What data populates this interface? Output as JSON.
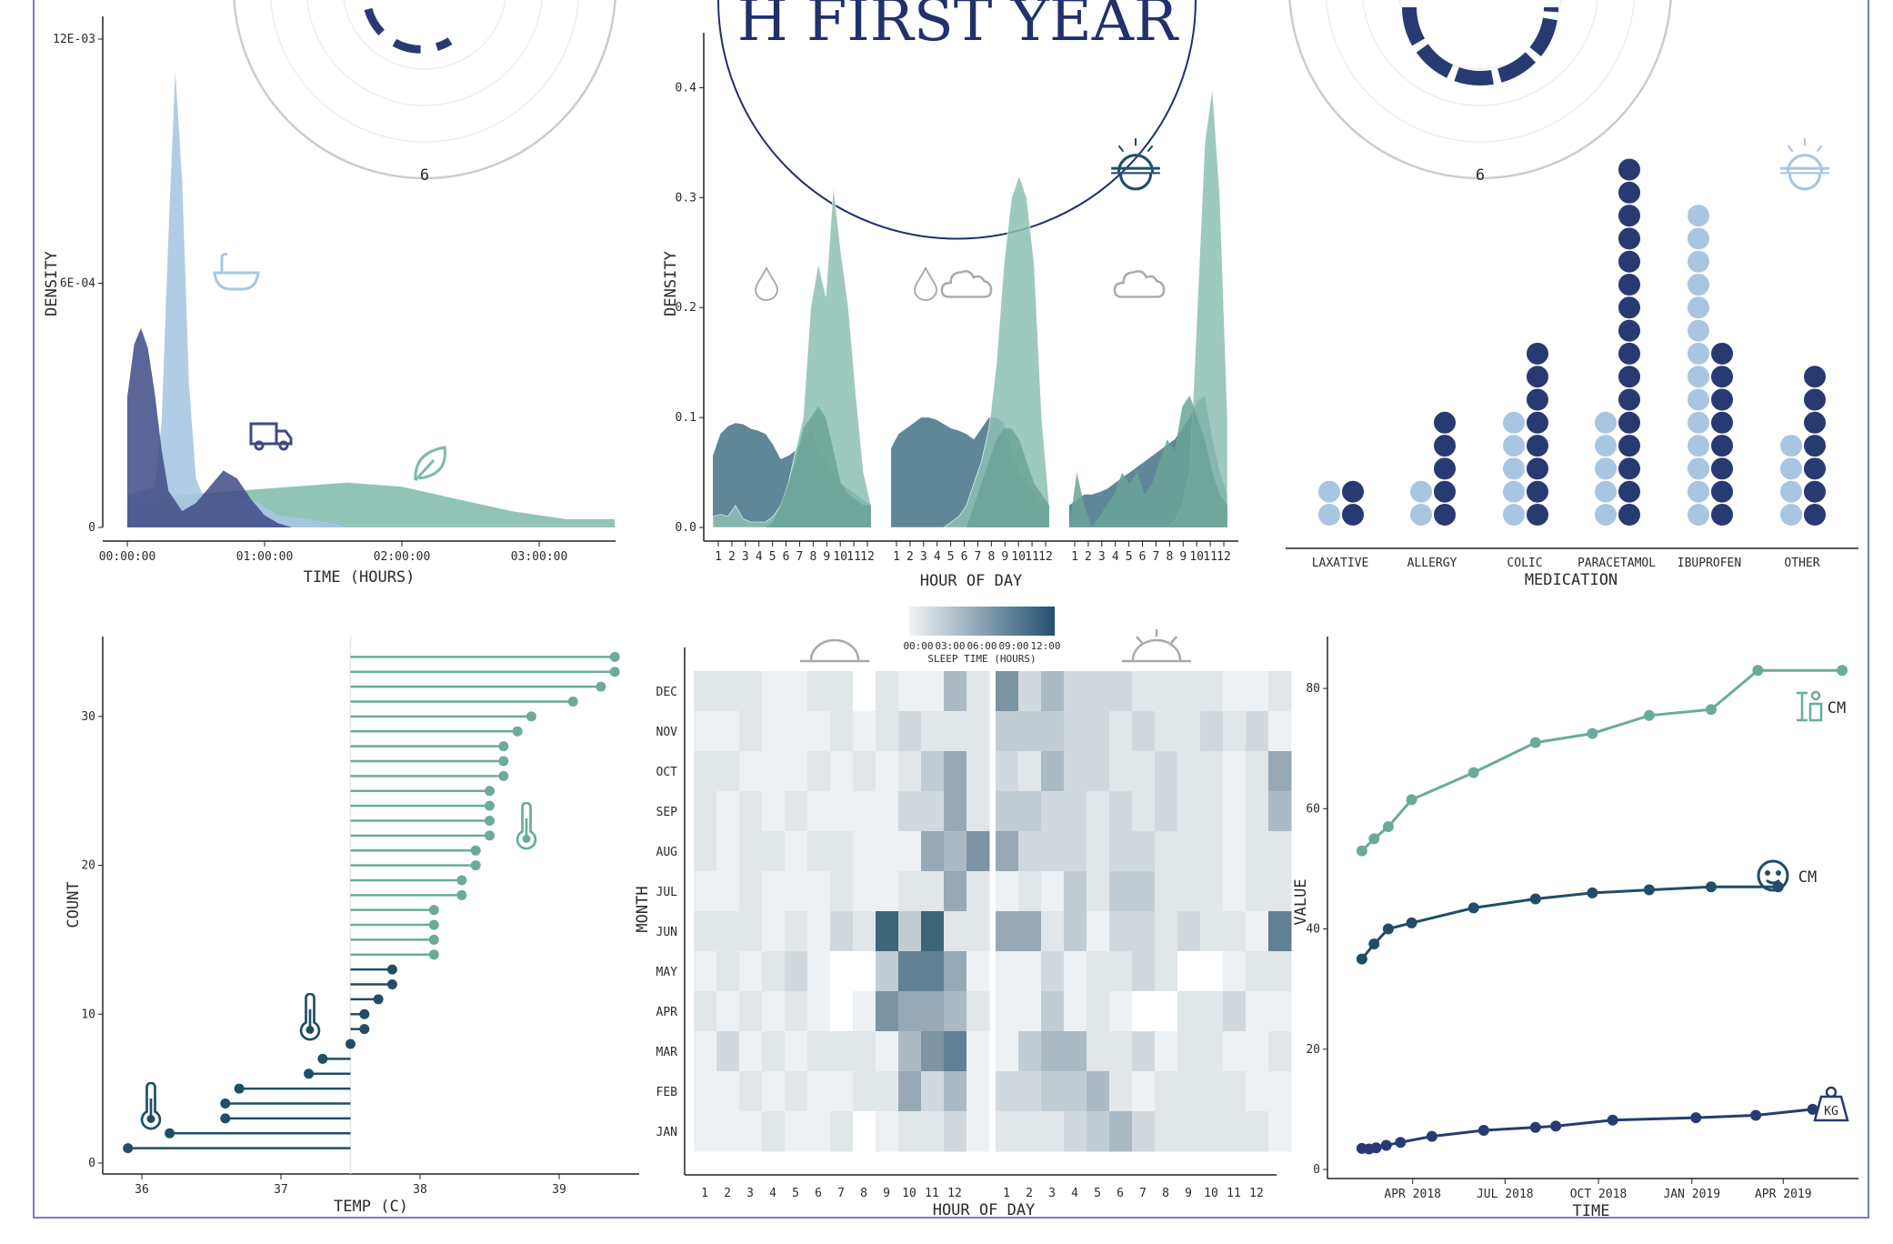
{
  "header": {
    "title_fragment": "H FIRST YEAR"
  },
  "colors": {
    "navy": "#283a72",
    "lightblue": "#a8c6e2",
    "teal": "#7fb8aa",
    "slate": "#4f7a8d",
    "darkteal": "#1f5068"
  },
  "icons": [
    "bathtub-icon",
    "truck-icon",
    "leaf-icon",
    "drop-icon",
    "cloud-icon",
    "sunset-icon",
    "thermometer-icon",
    "baby-face-icon",
    "weight-icon",
    "height-icon"
  ],
  "polar_labels": {
    "left_bottom": "6",
    "right_bottom": "6"
  },
  "chart_data": [
    {
      "id": "duration",
      "type": "area",
      "xlabel": "TIME (HOURS)",
      "ylabel": "DENSITY",
      "x_ticks": [
        "00:00:00",
        "01:00:00",
        "02:00:00",
        "03:00:00"
      ],
      "y_ticks": [
        "0",
        "6E-04",
        "12E-03"
      ],
      "xlim_hours": [
        0,
        3.6
      ],
      "ylim": [
        0,
        0.0012
      ],
      "series": [
        {
          "icon": "truck-icon",
          "color": "#3e4a85",
          "x": [
            0,
            0.05,
            0.1,
            0.15,
            0.2,
            0.25,
            0.3,
            0.4,
            0.5,
            0.6,
            0.7,
            0.8,
            0.9,
            1.0,
            1.1,
            1.2,
            1.4,
            1.6
          ],
          "y": [
            0.00032,
            0.00045,
            0.00049,
            0.00044,
            0.00033,
            0.00019,
            9e-05,
            4e-05,
            6e-05,
            0.0001,
            0.00014,
            0.00012,
            7e-05,
            3e-05,
            1e-05,
            0,
            0,
            0
          ]
        },
        {
          "icon": "bathtub-icon",
          "color": "#a8c6e2",
          "x": [
            0,
            0.2,
            0.25,
            0.3,
            0.35,
            0.4,
            0.45,
            0.5,
            0.55,
            0.6,
            0.7,
            0.9,
            1.1,
            1.3,
            1.5,
            1.6
          ],
          "y": [
            8e-05,
            0.0001,
            0.00026,
            0.00072,
            0.00112,
            0.00085,
            0.00035,
            0.00012,
            8e-05,
            8e-05,
            8e-05,
            7e-05,
            3e-05,
            2e-05,
            1e-05,
            0
          ]
        },
        {
          "icon": "leaf-icon",
          "color": "#7fb8aa",
          "x": [
            0,
            0.4,
            0.8,
            1.2,
            1.6,
            2.0,
            2.4,
            2.8,
            3.2,
            3.4,
            3.55
          ],
          "y": [
            6e-05,
            8e-05,
            9e-05,
            0.0001,
            0.00011,
            0.0001,
            7e-05,
            4e-05,
            2e-05,
            2e-05,
            2e-05
          ]
        }
      ]
    },
    {
      "id": "hourly_density",
      "type": "area",
      "xlabel": "HOUR OF DAY",
      "ylabel": "DENSITY",
      "y_ticks": [
        "0.0",
        "0.1",
        "0.2",
        "0.3",
        "0.4"
      ],
      "ylim": [
        0,
        0.45
      ],
      "hours": [
        "1",
        "2",
        "3",
        "4",
        "5",
        "6",
        "7",
        "8",
        "9",
        "10",
        "11",
        "12"
      ],
      "facets": [
        {
          "icons": [
            "drop-icon"
          ],
          "dark": [
            0.065,
            0.085,
            0.092,
            0.095,
            0.094,
            0.09,
            0.088,
            0.085,
            0.075,
            0.062,
            0.065,
            0.07,
            0.08,
            0.09,
            0.07,
            0.06,
            0.05,
            0.04,
            0.035,
            0.03,
            0.025,
            0.02
          ],
          "light": [
            0.01,
            0.012,
            0.01,
            0.02,
            0.008,
            0.005,
            0.005,
            0.005,
            0.01,
            0.02,
            0.04,
            0.07,
            0.1,
            0.2,
            0.24,
            0.21,
            0.31,
            0.25,
            0.2,
            0.12,
            0.05,
            0.02
          ],
          "mid": [
            0.0,
            0.0,
            0.0,
            0.0,
            0.0,
            0.0,
            0.0,
            0.0,
            0.005,
            0.02,
            0.04,
            0.06,
            0.09,
            0.1,
            0.11,
            0.1,
            0.07,
            0.04,
            0.03,
            0.025,
            0.02,
            0.02
          ]
        },
        {
          "icons": [
            "drop-icon",
            "cloud-icon"
          ],
          "dark": [
            0.072,
            0.085,
            0.09,
            0.095,
            0.1,
            0.1,
            0.098,
            0.094,
            0.09,
            0.088,
            0.085,
            0.08,
            0.09,
            0.1,
            0.1,
            0.095,
            0.07,
            0.05,
            0.04,
            0.03,
            0.02,
            0.02
          ],
          "light": [
            0.0,
            0.0,
            0.0,
            0.0,
            0.0,
            0.0,
            0.0,
            0.0,
            0.005,
            0.01,
            0.02,
            0.04,
            0.06,
            0.09,
            0.15,
            0.24,
            0.3,
            0.32,
            0.3,
            0.24,
            0.1,
            0.02
          ],
          "mid": [
            0.0,
            0.0,
            0.0,
            0.0,
            0.0,
            0.0,
            0.0,
            0.0,
            0.0,
            0.0,
            0.0,
            0.02,
            0.04,
            0.06,
            0.08,
            0.09,
            0.09,
            0.08,
            0.06,
            0.04,
            0.03,
            0.02
          ]
        },
        {
          "icons": [
            "cloud-icon",
            "sunset-icon"
          ],
          "dark": [
            0.02,
            0.025,
            0.03,
            0.03,
            0.032,
            0.035,
            0.04,
            0.045,
            0.05,
            0.055,
            0.06,
            0.065,
            0.07,
            0.075,
            0.08,
            0.09,
            0.1,
            0.115,
            0.12,
            0.08,
            0.05,
            0.03
          ],
          "light": [
            0.0,
            0.0,
            0.0,
            0.0,
            0.0,
            0.0,
            0.0,
            0.0,
            0.0,
            0.0,
            0.0,
            0.0,
            0.0,
            0.0,
            0.005,
            0.02,
            0.05,
            0.2,
            0.35,
            0.4,
            0.3,
            0.1
          ],
          "mid": [
            0.0,
            0.05,
            0.02,
            0.0,
            0.01,
            0.02,
            0.03,
            0.05,
            0.04,
            0.05,
            0.03,
            0.04,
            0.06,
            0.08,
            0.07,
            0.11,
            0.12,
            0.1,
            0.08,
            0.05,
            0.03,
            0.02
          ]
        }
      ]
    },
    {
      "id": "medication",
      "type": "dot",
      "xlabel": "MEDICATION",
      "categories": [
        "LAXATIVE",
        "ALLERGY",
        "COLIC",
        "PARACETAMOL",
        "IBUPROFEN",
        "OTHER"
      ],
      "series": [
        {
          "color": "#a8c6e2",
          "values": [
            2,
            2,
            5,
            5,
            14,
            4
          ]
        },
        {
          "color": "#283a72",
          "values": [
            2,
            5,
            8,
            16,
            8,
            7
          ]
        }
      ]
    },
    {
      "id": "temperature",
      "type": "lollipop",
      "xlabel": "TEMP (C)",
      "ylabel": "COUNT",
      "x_ticks": [
        "36",
        "37",
        "38",
        "39"
      ],
      "y_ticks": [
        "0",
        "10",
        "20",
        "30"
      ],
      "xlim": [
        35.8,
        39.6
      ],
      "ylim": [
        0,
        35
      ],
      "baseline": 37.5,
      "values": [
        35.9,
        36.2,
        36.6,
        36.6,
        36.7,
        37.2,
        37.3,
        37.5,
        37.6,
        37.6,
        37.7,
        37.8,
        37.8,
        38.1,
        38.1,
        38.1,
        38.1,
        38.3,
        38.3,
        38.4,
        38.4,
        38.5,
        38.5,
        38.5,
        38.5,
        38.6,
        38.6,
        38.6,
        38.7,
        38.8,
        39.1,
        39.3,
        39.4,
        39.4
      ]
    },
    {
      "id": "sleep_heatmap",
      "type": "heatmap",
      "xlabel": "HOUR OF DAY",
      "ylabel": "MONTH",
      "legend_title": "SLEEP TIME (HOURS)",
      "legend_ticks": [
        "00:00",
        "03:00",
        "06:00",
        "09:00",
        "12:00"
      ],
      "months": [
        "DEC",
        "NOV",
        "OCT",
        "SEP",
        "AUG",
        "JUL",
        "JUN",
        "MAY",
        "APR",
        "MAR",
        "FEB",
        "JAN"
      ],
      "hours": [
        "1",
        "2",
        "3",
        "4",
        "5",
        "6",
        "7",
        "8",
        "9",
        "10",
        "11",
        "12"
      ],
      "am": [
        [
          2,
          2,
          2,
          1,
          1,
          2,
          2,
          0,
          2,
          1,
          1,
          5,
          2
        ],
        [
          1,
          1,
          2,
          1,
          1,
          1,
          2,
          1,
          2,
          3,
          2,
          2,
          2
        ],
        [
          2,
          2,
          1,
          1,
          1,
          2,
          1,
          2,
          1,
          2,
          4,
          6,
          2
        ],
        [
          2,
          1,
          2,
          1,
          2,
          1,
          1,
          1,
          1,
          3,
          3,
          6,
          2
        ],
        [
          2,
          1,
          2,
          2,
          1,
          2,
          2,
          1,
          1,
          1,
          6,
          5,
          7
        ],
        [
          1,
          1,
          2,
          1,
          1,
          1,
          2,
          1,
          1,
          2,
          2,
          6,
          2
        ],
        [
          2,
          2,
          2,
          1,
          2,
          1,
          3,
          2,
          9,
          4,
          9,
          2,
          2
        ],
        [
          1,
          2,
          1,
          2,
          3,
          1,
          0,
          0,
          4,
          8,
          8,
          6,
          1
        ],
        [
          2,
          1,
          2,
          1,
          2,
          1,
          0,
          1,
          7,
          6,
          6,
          5,
          2
        ],
        [
          1,
          3,
          1,
          2,
          1,
          2,
          2,
          2,
          1,
          5,
          7,
          8,
          1
        ],
        [
          1,
          1,
          2,
          1,
          2,
          1,
          1,
          2,
          2,
          6,
          3,
          5,
          1
        ],
        [
          1,
          1,
          1,
          2,
          1,
          1,
          2,
          0,
          1,
          2,
          2,
          3,
          1
        ]
      ],
      "pm": [
        [
          7,
          3,
          5,
          3,
          3,
          3,
          2,
          2,
          2,
          2,
          1,
          1,
          2
        ],
        [
          4,
          4,
          4,
          3,
          3,
          2,
          3,
          2,
          2,
          3,
          2,
          3,
          1
        ],
        [
          3,
          2,
          5,
          3,
          3,
          2,
          2,
          3,
          2,
          2,
          1,
          2,
          6
        ],
        [
          4,
          4,
          3,
          3,
          2,
          3,
          2,
          3,
          2,
          2,
          1,
          2,
          5
        ],
        [
          6,
          3,
          3,
          3,
          2,
          3,
          3,
          2,
          2,
          2,
          1,
          2,
          2
        ],
        [
          1,
          2,
          1,
          4,
          2,
          4,
          4,
          2,
          2,
          2,
          1,
          2,
          2
        ],
        [
          6,
          6,
          2,
          4,
          1,
          3,
          3,
          2,
          3,
          2,
          2,
          1,
          8
        ],
        [
          1,
          1,
          3,
          1,
          2,
          2,
          3,
          2,
          0,
          0,
          1,
          2,
          2
        ],
        [
          1,
          1,
          4,
          1,
          2,
          1,
          0,
          0,
          2,
          2,
          3,
          1,
          1
        ],
        [
          1,
          4,
          5,
          5,
          2,
          2,
          3,
          1,
          2,
          2,
          1,
          1,
          2
        ],
        [
          3,
          3,
          4,
          4,
          5,
          2,
          1,
          2,
          2,
          2,
          2,
          1,
          1
        ],
        [
          2,
          2,
          2,
          3,
          4,
          5,
          3,
          2,
          2,
          2,
          2,
          2,
          1
        ]
      ]
    },
    {
      "id": "growth",
      "type": "line",
      "xlabel": "TIME",
      "ylabel": "VALUE",
      "x_ticks": [
        "APR 2018",
        "JUL 2018",
        "OCT 2018",
        "JAN 2019",
        "APR 2019"
      ],
      "y_ticks": [
        "0",
        "20",
        "40",
        "60",
        "80"
      ],
      "ylim": [
        0,
        85
      ],
      "series": [
        {
          "unit": "CM",
          "icon": "height-icon",
          "color": "#6aab9c",
          "x": [
            "2018-02-10",
            "2018-02-22",
            "2018-03-08",
            "2018-03-31",
            "2018-05-31",
            "2018-07-31",
            "2018-09-25",
            "2018-11-20",
            "2019-01-20",
            "2019-03-07",
            "2019-05-29"
          ],
          "values": [
            53,
            55,
            57,
            61.5,
            66,
            71,
            72.5,
            75.5,
            76.5,
            83,
            83
          ]
        },
        {
          "unit": "CM",
          "icon": "baby-face-icon",
          "color": "#1f4e66",
          "x": [
            "2018-02-10",
            "2018-02-22",
            "2018-03-08",
            "2018-03-31",
            "2018-05-31",
            "2018-07-31",
            "2018-09-25",
            "2018-11-20",
            "2019-01-20",
            "2019-03-27"
          ],
          "values": [
            35,
            37.5,
            40,
            41,
            43.5,
            45,
            46,
            46.5,
            47,
            47
          ]
        },
        {
          "unit": "KG",
          "icon": "weight-icon",
          "color": "#283a72",
          "x": [
            "2018-02-10",
            "2018-02-17",
            "2018-02-24",
            "2018-03-06",
            "2018-03-20",
            "2018-04-20",
            "2018-06-10",
            "2018-07-31",
            "2018-08-20",
            "2018-10-15",
            "2019-01-05",
            "2019-03-05",
            "2019-04-30"
          ],
          "values": [
            3.5,
            3.4,
            3.6,
            4,
            4.5,
            5.5,
            6.5,
            7,
            7.2,
            8.2,
            8.6,
            9,
            10
          ]
        }
      ]
    }
  ]
}
